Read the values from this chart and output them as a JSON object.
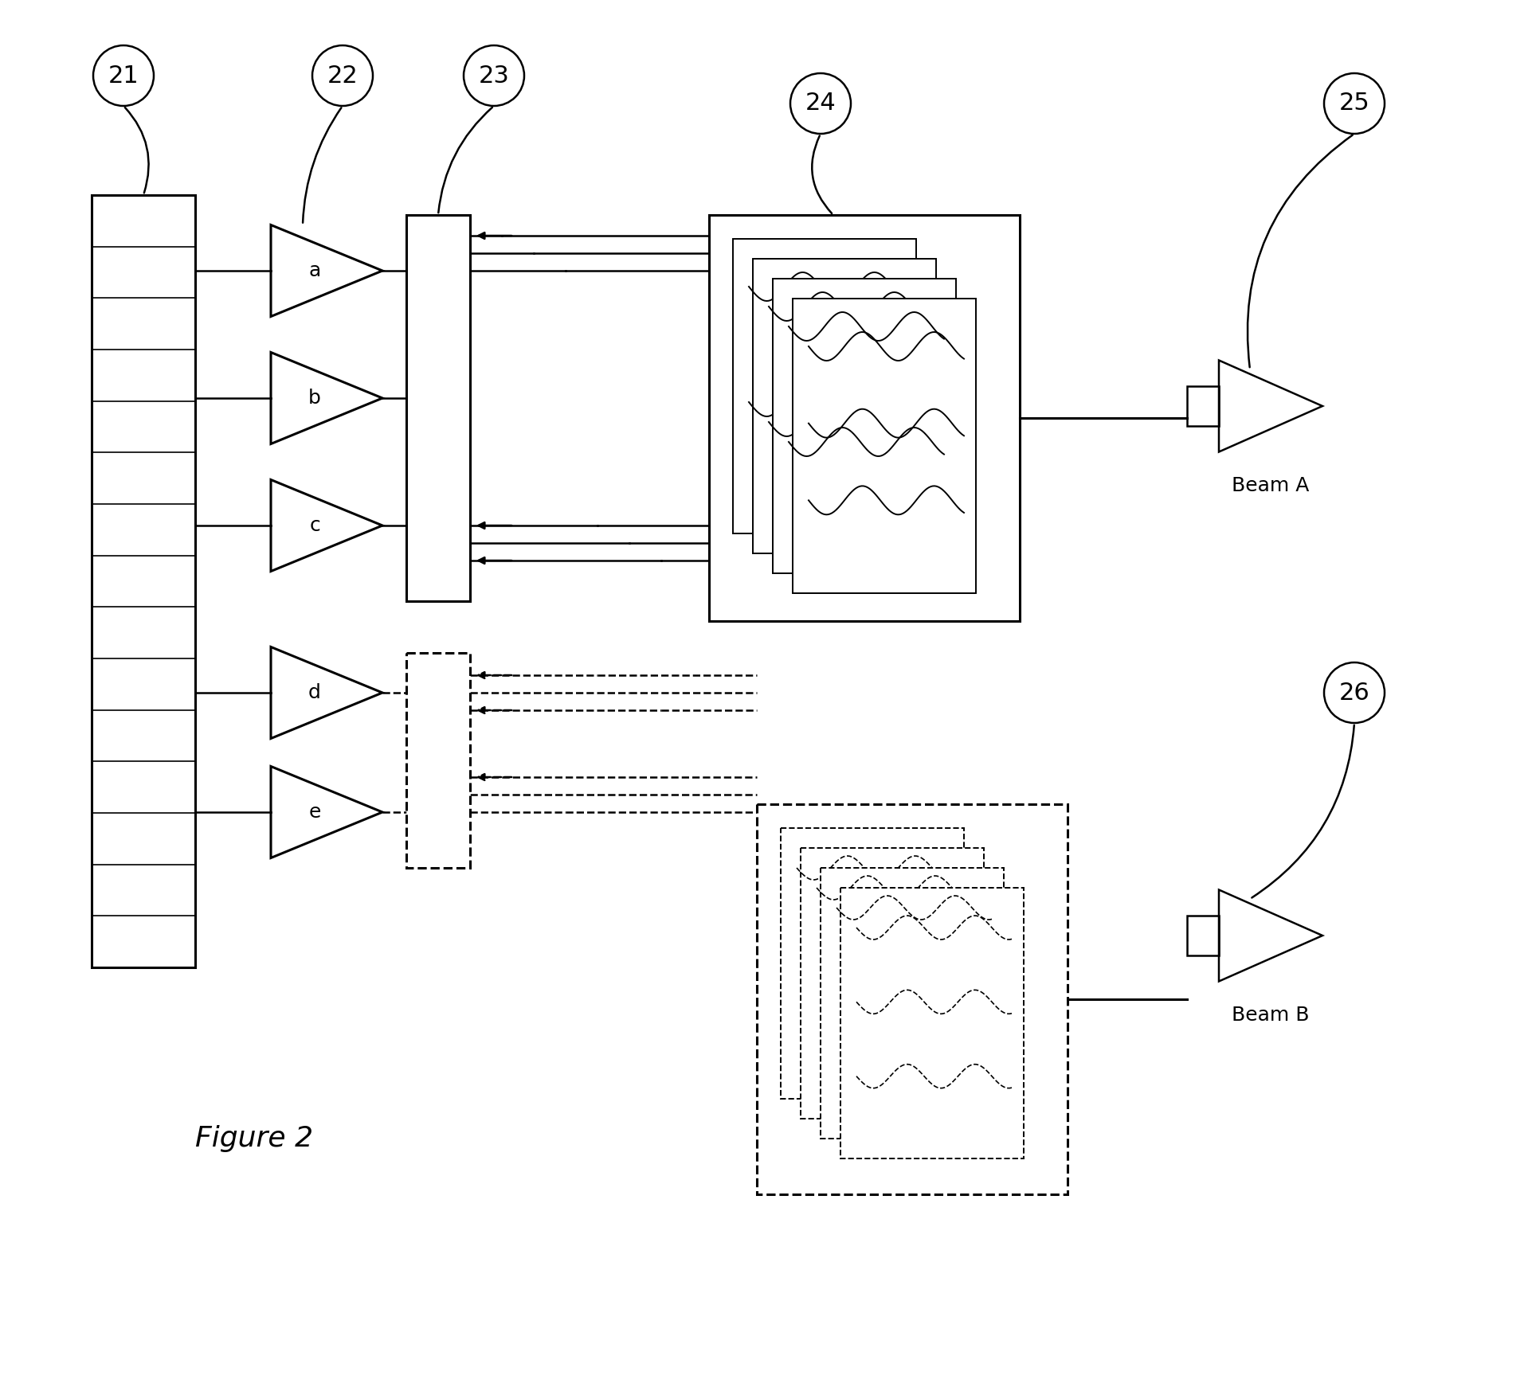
{
  "figsize": [
    19.18,
    17.42
  ],
  "dpi": 100,
  "background": "#ffffff",
  "figure_label": "Figure 2",
  "circle_labels": [
    "21",
    "22",
    "23",
    "24",
    "25",
    "26"
  ],
  "amp_labels": [
    "a",
    "b",
    "c",
    "d",
    "e"
  ],
  "beam_labels": [
    "Beam A",
    "Beam B"
  ]
}
